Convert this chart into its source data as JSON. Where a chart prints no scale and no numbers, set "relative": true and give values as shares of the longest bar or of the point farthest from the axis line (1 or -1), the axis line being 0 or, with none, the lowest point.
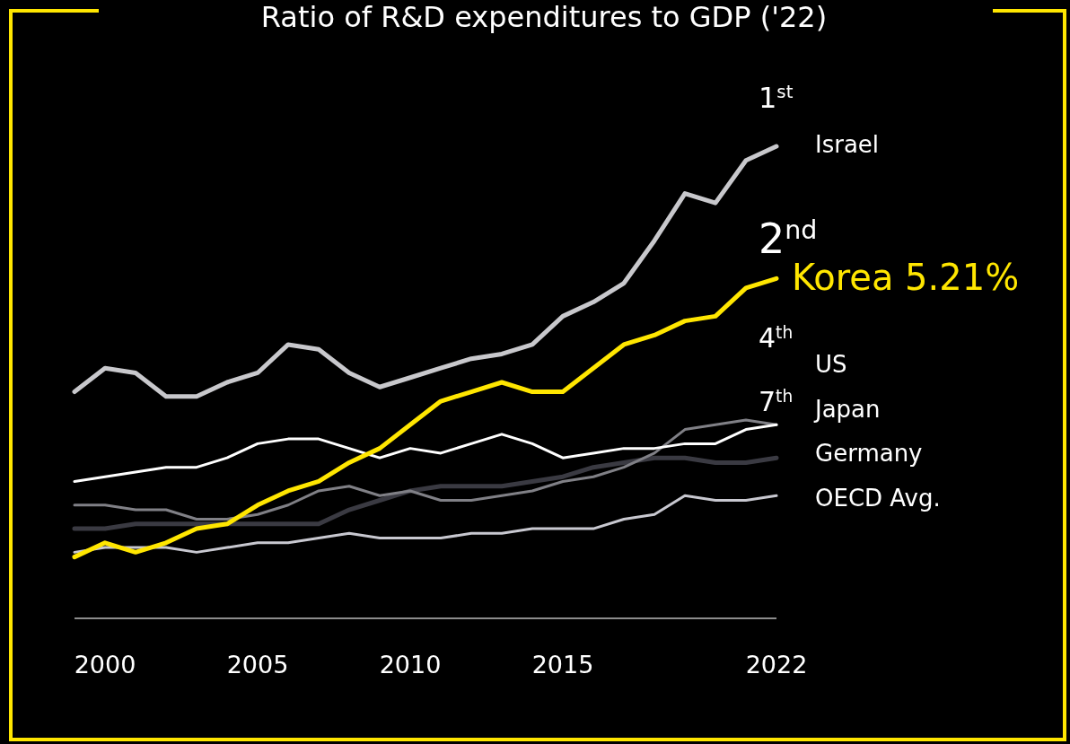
{
  "chart_data": {
    "type": "line",
    "title": "Ratio of R&D expenditures to GDP ('22)",
    "relative": true,
    "x": [
      1999,
      2000,
      2001,
      2002,
      2003,
      2004,
      2005,
      2006,
      2007,
      2008,
      2009,
      2010,
      2011,
      2012,
      2013,
      2014,
      2015,
      2016,
      2017,
      2018,
      2019,
      2020,
      2021,
      2022
    ],
    "xlim": [
      1999,
      2022
    ],
    "xticks": [
      2000,
      2005,
      2010,
      2015,
      2022
    ],
    "series": [
      {
        "name": "Israel",
        "color": "#c8c8cc",
        "values": [
          0.48,
          0.53,
          0.52,
          0.47,
          0.47,
          0.5,
          0.52,
          0.58,
          0.57,
          0.52,
          0.49,
          0.51,
          0.53,
          0.55,
          0.56,
          0.58,
          0.64,
          0.67,
          0.71,
          0.8,
          0.9,
          0.88,
          0.97,
          1
        ]
      },
      {
        "name": "Korea 5.21%",
        "color": "#ffe600",
        "values": [
          0.13,
          0.16,
          0.14,
          0.16,
          0.19,
          0.2,
          0.24,
          0.27,
          0.29,
          0.33,
          0.36,
          0.41,
          0.46,
          0.48,
          0.5,
          0.48,
          0.48,
          0.53,
          0.58,
          0.6,
          0.63,
          0.64,
          0.7,
          0.72
        ]
      },
      {
        "name": "US",
        "color": "#ffffff",
        "values": [
          0.29,
          0.3,
          0.31,
          0.32,
          0.32,
          0.34,
          0.37,
          0.38,
          0.38,
          0.36,
          0.34,
          0.36,
          0.35,
          0.37,
          0.39,
          0.37,
          0.34,
          0.35,
          0.36,
          0.36,
          0.37,
          0.37,
          0.4,
          0.41
        ]
      },
      {
        "name": "Japan",
        "color": "#808086",
        "values": [
          0.24,
          0.24,
          0.23,
          0.23,
          0.21,
          0.21,
          0.22,
          0.24,
          0.27,
          0.28,
          0.26,
          0.27,
          0.25,
          0.25,
          0.26,
          0.27,
          0.29,
          0.3,
          0.32,
          0.35,
          0.4,
          0.41,
          0.42,
          0.41
        ]
      },
      {
        "name": "Germany",
        "color": "#3a3a42",
        "values": [
          0.19,
          0.19,
          0.2,
          0.2,
          0.2,
          0.2,
          0.2,
          0.2,
          0.2,
          0.23,
          0.25,
          0.27,
          0.28,
          0.28,
          0.28,
          0.29,
          0.3,
          0.32,
          0.33,
          0.34,
          0.34,
          0.33,
          0.33,
          0.34
        ]
      },
      {
        "name": "OECD Avg.",
        "color": "#c8c8d0",
        "values": [
          0.14,
          0.15,
          0.15,
          0.15,
          0.14,
          0.15,
          0.16,
          0.16,
          0.17,
          0.18,
          0.17,
          0.17,
          0.17,
          0.18,
          0.18,
          0.19,
          0.19,
          0.19,
          0.21,
          0.22,
          0.26,
          0.25,
          0.25,
          0.26
        ]
      }
    ],
    "annotations": [
      "1$^{st}$",
      "2$^{nd}$",
      "4$^{th}$",
      "7$^{th}$"
    ]
  }
}
